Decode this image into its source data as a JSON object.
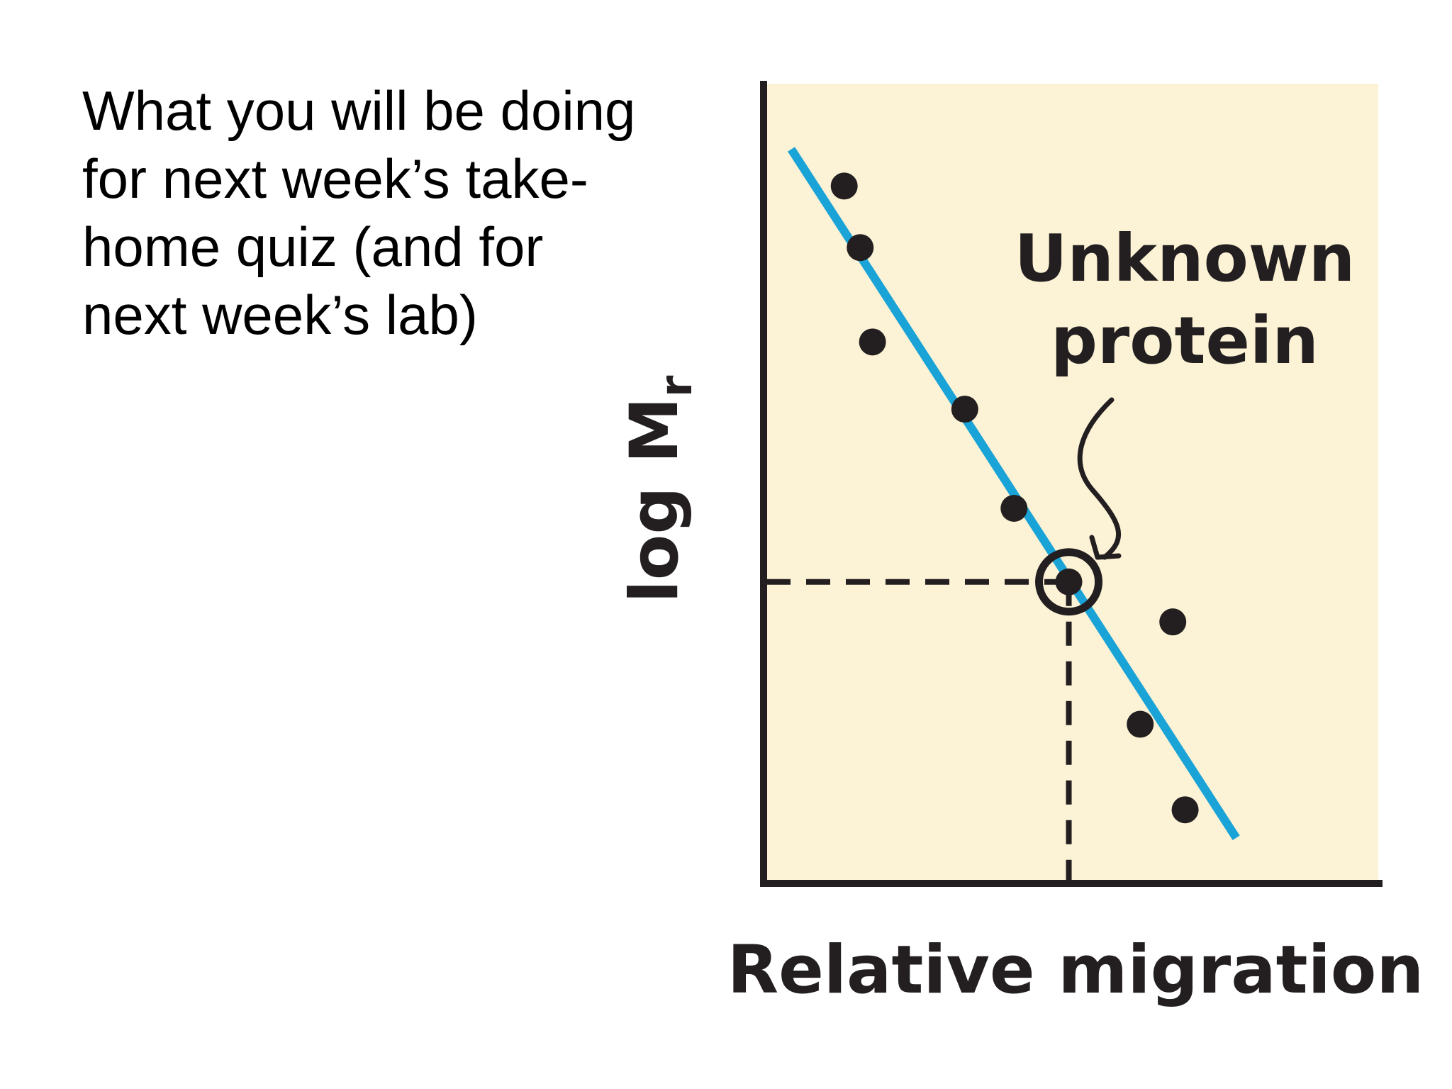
{
  "slide": {
    "text_lines": [
      "What you will be doing",
      "for next week’s take-",
      "home quiz (and for",
      "next week’s lab)"
    ]
  },
  "colors": {
    "plot_background": "#fcf3d6",
    "fit_line": "#1aa3d6",
    "points": "#231f20",
    "axes": "#231f20"
  },
  "chart_data": {
    "type": "scatter",
    "title": "",
    "xlabel": "Relative migration",
    "ylabel_main": "log M",
    "ylabel_subscript": "r",
    "ticks": "none",
    "xlim": [
      0,
      1
    ],
    "ylim": [
      0,
      1
    ],
    "points": [
      {
        "x": 0.131,
        "y": 0.872
      },
      {
        "x": 0.157,
        "y": 0.795
      },
      {
        "x": 0.177,
        "y": 0.677
      },
      {
        "x": 0.327,
        "y": 0.593
      },
      {
        "x": 0.407,
        "y": 0.469
      },
      {
        "x": 0.665,
        "y": 0.327
      },
      {
        "x": 0.612,
        "y": 0.199
      },
      {
        "x": 0.685,
        "y": 0.092
      }
    ],
    "unknown_point": {
      "x": 0.496,
      "y": 0.377
    },
    "fit_line": {
      "start": {
        "x": 0.045,
        "y": 0.918
      },
      "end": {
        "x": 0.768,
        "y": 0.057
      }
    },
    "annotation": {
      "lines": [
        "Unknown",
        "protein"
      ]
    },
    "grid": false,
    "legend": "none"
  }
}
